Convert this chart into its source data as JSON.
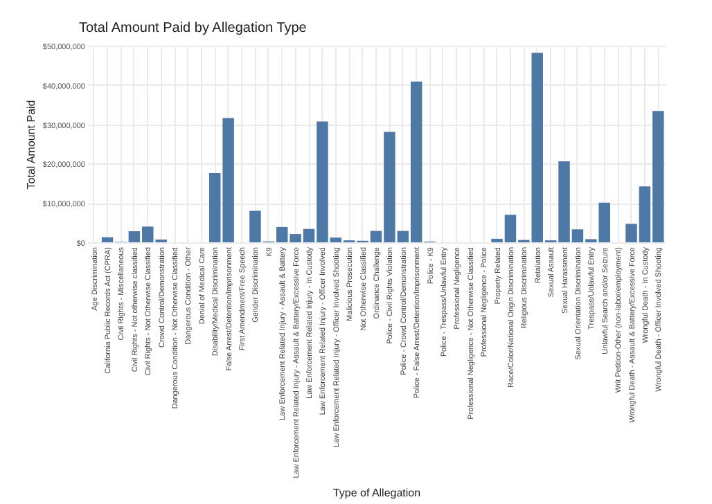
{
  "chart_data": {
    "type": "bar",
    "title": "Total Amount Paid by Allegation Type",
    "xlabel": "Type of Allegation",
    "ylabel": "Total Amount Paid",
    "categories": [
      "Age Discrimination",
      "California Public Records Act (CPRA)",
      "Civil Rights - Miscellaneous",
      "Civil Rights - Not otherwise classified",
      "Civil Rights - Not Otherwise Classified",
      "Crowd Control/Demonstration",
      "Dangerous Condition - Not Otherwise Classified",
      "Dangerous Condition - Other",
      "Denial of Medical Care",
      "Disability/Medical Discrimination",
      "False Arrest/Detention/Imprisonment",
      "First Amendment/Free Speech",
      "Gender Discrimination",
      "K9",
      "Law Enforcement Related Injury - Assault & Battery",
      "Law Enforcement Related Injury - Assault & Battery/Excessive Force",
      "Law Enforcement Related Injury - In Custody",
      "Law Enforcement Related Injury - Officer Involved",
      "Law Enforcement Related Injury - Officer Involved Shooting",
      "Malicious Prosecution",
      "Not Otherwise Classified",
      "Ordinance Challenge",
      "Police - Civil Rights Violation",
      "Police - Crowd Control/Demonstration",
      "Police - False Arrest/Detention/Imprisonment",
      "Police - K9",
      "Police - Trespass/Unlawful Entry",
      "Professional Negligence",
      "Professional Negligence - Not Otherwise Classified",
      "Professional Negligence - Police",
      "Property Related",
      "Race/Color/National Origin Discrimination",
      "Religious Discrimination",
      "Retaliation",
      "Sexual Assault",
      "Sexual Harassment",
      "Sexual Orientation Discrimination",
      "Trespass/Unlawful Entry",
      "Unlawful Search and/or Seizure",
      "Writ Petition-Other (non-labor/employment)",
      "Wrongful Death - Assault & Battery/Excessive Force",
      "Wrongful Death - In Custody",
      "Wrongful Death - Officer Involved Shooting"
    ],
    "values": [
      0,
      1300000,
      100000,
      2800000,
      4000000,
      700000,
      0,
      0,
      0,
      17600000,
      31600000,
      0,
      8000000,
      200000,
      3900000,
      2100000,
      3400000,
      30700000,
      1200000,
      500000,
      400000,
      2900000,
      28100000,
      2900000,
      40900000,
      200000,
      0,
      0,
      0,
      0,
      900000,
      7000000,
      600000,
      48200000,
      500000,
      20600000,
      3300000,
      800000,
      10100000,
      0,
      4700000,
      14200000,
      33400000
    ],
    "color": "#4e79a7",
    "ylim": [
      0,
      50000000
    ],
    "yticks": [
      {
        "value": 0,
        "label": "$0"
      },
      {
        "value": 10000000,
        "label": "$10,000,000"
      },
      {
        "value": 20000000,
        "label": "$20,000,000"
      },
      {
        "value": 30000000,
        "label": "$30,000,000"
      },
      {
        "value": 40000000,
        "label": "$40,000,000"
      },
      {
        "value": 50000000,
        "label": "$50,000,000"
      }
    ],
    "grid": true
  }
}
